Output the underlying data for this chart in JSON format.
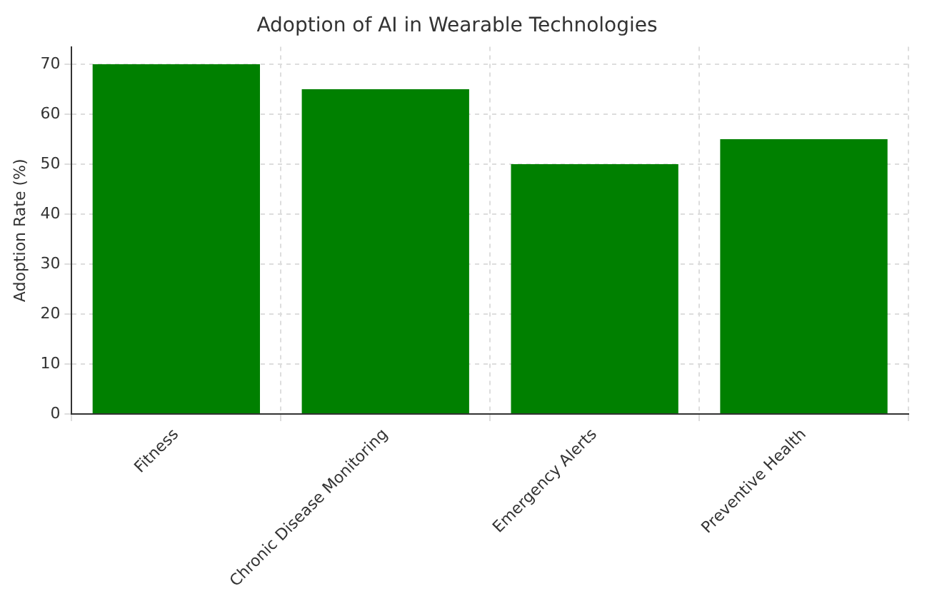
{
  "chart_data": {
    "type": "bar",
    "title": "Adoption of AI in Wearable Technologies",
    "ylabel": "Adoption Rate (%)",
    "categories": [
      "Fitness",
      "Chronic Disease Monitoring",
      "Emergency Alerts",
      "Preventive Health"
    ],
    "values": [
      70,
      65,
      50,
      55
    ],
    "color": "#008000",
    "ylim": [
      0,
      73.5
    ],
    "yticks": [
      0,
      10,
      20,
      30,
      40,
      50,
      60,
      70
    ],
    "grid": true
  }
}
